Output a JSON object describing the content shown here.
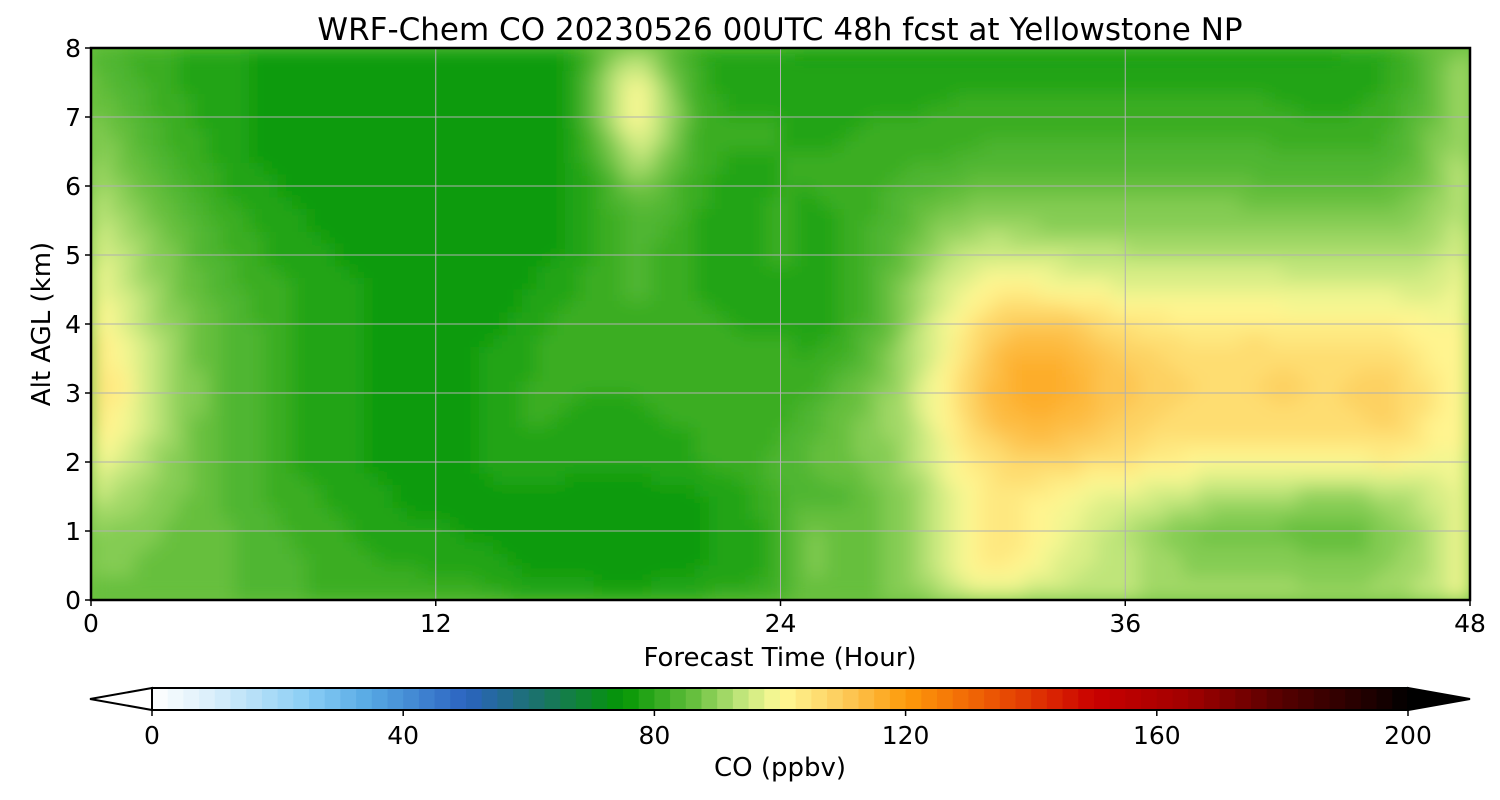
{
  "chart_data": {
    "type": "heatmap",
    "title": "WRF-Chem CO  20230526 00UTC 48h fcst at Yellowstone NP",
    "xlabel": "Forecast Time (Hour)",
    "ylabel": "Alt AGL (km)",
    "xlim": [
      0,
      48
    ],
    "ylim": [
      0,
      8
    ],
    "x_ticks": [
      0,
      12,
      24,
      36,
      48
    ],
    "y_ticks": [
      0,
      1,
      2,
      3,
      4,
      5,
      6,
      7,
      8
    ],
    "grid": true,
    "x": [
      0,
      1,
      2,
      3,
      4,
      5,
      6,
      7,
      8,
      9,
      10,
      11,
      12,
      13,
      14,
      15,
      16,
      17,
      18,
      19,
      20,
      21,
      22,
      23,
      24,
      25,
      26,
      27,
      28,
      29,
      30,
      31,
      32,
      33,
      34,
      35,
      36,
      37,
      38,
      39,
      40,
      41,
      42,
      43,
      44,
      45,
      46,
      47,
      48
    ],
    "y": [
      0,
      0.5,
      1,
      1.5,
      2,
      2.5,
      3,
      3.5,
      4,
      4.5,
      5,
      5.5,
      6,
      6.5,
      7,
      7.5,
      8
    ],
    "z_note": "rows indexed by altitude (y), columns by forecast hour (x)",
    "z": [
      [
        86,
        87,
        86,
        86,
        85,
        85,
        84,
        83,
        82,
        82,
        82,
        82,
        82,
        82,
        81,
        80,
        79,
        79,
        78,
        78,
        79,
        80,
        81,
        81,
        82,
        86,
        87,
        87,
        88,
        90,
        93,
        94,
        94,
        93,
        93,
        93,
        93,
        92,
        92,
        92,
        92,
        91,
        91,
        91,
        91,
        92,
        93,
        95,
        100
      ],
      [
        88,
        88,
        87,
        87,
        86,
        85,
        84,
        83,
        82,
        81,
        80,
        80,
        79,
        79,
        78,
        77,
        77,
        77,
        76,
        76,
        77,
        77,
        78,
        79,
        81,
        88,
        87,
        87,
        88,
        92,
        98,
        103,
        103,
        100,
        96,
        95,
        94,
        92,
        90,
        88,
        88,
        89,
        89,
        88,
        88,
        90,
        91,
        95,
        100
      ],
      [
        90,
        89,
        88,
        87,
        86,
        85,
        84,
        82,
        81,
        80,
        79,
        78,
        78,
        77,
        77,
        77,
        76,
        76,
        76,
        76,
        77,
        77,
        78,
        79,
        81,
        88,
        87,
        87,
        88,
        92,
        98,
        104,
        104,
        101,
        98,
        95,
        93,
        90,
        88,
        87,
        87,
        87,
        86,
        85,
        85,
        88,
        90,
        95,
        100
      ],
      [
        95,
        92,
        90,
        88,
        86,
        84,
        82,
        81,
        80,
        79,
        78,
        77,
        76,
        77,
        77,
        77,
        77,
        76,
        76,
        76,
        77,
        77,
        78,
        80,
        83,
        84,
        84,
        86,
        88,
        92,
        98,
        103,
        104,
        102,
        100,
        98,
        97,
        96,
        95,
        93,
        92,
        92,
        91,
        90,
        90,
        91,
        93,
        96,
        100
      ],
      [
        100,
        96,
        92,
        89,
        86,
        84,
        82,
        80,
        79,
        78,
        77,
        76,
        76,
        77,
        78,
        79,
        79,
        78,
        78,
        78,
        79,
        80,
        81,
        82,
        83,
        85,
        87,
        88,
        90,
        94,
        100,
        104,
        107,
        108,
        107,
        106,
        105,
        103,
        102,
        101,
        101,
        101,
        101,
        101,
        101,
        102,
        101,
        99,
        100
      ],
      [
        104,
        100,
        94,
        90,
        86,
        84,
        82,
        80,
        79,
        78,
        77,
        76,
        76,
        77,
        78,
        80,
        80,
        79,
        79,
        79,
        80,
        80,
        81,
        81,
        82,
        84,
        87,
        88,
        91,
        96,
        103,
        109,
        113,
        114,
        113,
        111,
        109,
        107,
        106,
        106,
        106,
        106,
        106,
        106,
        107,
        108,
        106,
        101,
        100
      ],
      [
        106,
        102,
        96,
        91,
        87,
        84,
        82,
        80,
        79,
        78,
        77,
        76,
        76,
        77,
        78,
        80,
        81,
        80,
        80,
        80,
        81,
        82,
        82,
        82,
        82,
        82,
        85,
        87,
        91,
        97,
        104,
        112,
        116,
        118,
        116,
        113,
        111,
        109,
        108,
        107,
        107,
        108,
        108,
        107,
        108,
        109,
        107,
        102,
        100
      ],
      [
        105,
        101,
        95,
        90,
        86,
        84,
        82,
        80,
        79,
        78,
        77,
        76,
        76,
        77,
        78,
        79,
        81,
        81,
        81,
        81,
        82,
        82,
        82,
        81,
        81,
        80,
        82,
        85,
        89,
        95,
        102,
        110,
        115,
        116,
        115,
        112,
        110,
        108,
        107,
        106,
        107,
        107,
        107,
        106,
        107,
        107,
        105,
        101,
        100
      ],
      [
        103,
        98,
        93,
        89,
        86,
        84,
        82,
        80,
        79,
        78,
        77,
        76,
        75,
        76,
        77,
        78,
        80,
        81,
        82,
        82,
        82,
        81,
        80,
        79,
        80,
        78,
        80,
        83,
        88,
        94,
        100,
        106,
        110,
        111,
        110,
        107,
        105,
        104,
        103,
        103,
        103,
        103,
        102,
        102,
        102,
        102,
        101,
        100,
        100
      ],
      [
        100,
        96,
        91,
        88,
        85,
        83,
        81,
        80,
        79,
        78,
        77,
        76,
        75,
        76,
        76,
        77,
        79,
        80,
        82,
        83,
        82,
        80,
        79,
        78,
        80,
        78,
        80,
        83,
        87,
        92,
        97,
        101,
        102,
        101,
        100,
        99,
        98,
        98,
        98,
        98,
        98,
        98,
        97,
        97,
        97,
        97,
        96,
        97,
        100
      ],
      [
        98,
        94,
        90,
        87,
        84,
        82,
        80,
        79,
        78,
        77,
        77,
        76,
        75,
        75,
        76,
        76,
        77,
        79,
        81,
        83,
        82,
        80,
        78,
        78,
        81,
        78,
        80,
        82,
        85,
        89,
        93,
        95,
        95,
        95,
        94,
        94,
        93,
        93,
        93,
        93,
        93,
        93,
        92,
        92,
        92,
        92,
        92,
        94,
        97
      ],
      [
        95,
        92,
        88,
        86,
        83,
        81,
        79,
        78,
        77,
        77,
        76,
        76,
        75,
        75,
        75,
        76,
        77,
        78,
        81,
        84,
        83,
        80,
        78,
        78,
        81,
        79,
        80,
        82,
        84,
        87,
        89,
        90,
        90,
        89,
        89,
        89,
        89,
        89,
        89,
        89,
        89,
        89,
        89,
        88,
        88,
        88,
        89,
        92,
        95
      ],
      [
        92,
        89,
        86,
        84,
        81,
        79,
        78,
        77,
        77,
        76,
        76,
        76,
        76,
        75,
        75,
        75,
        76,
        78,
        82,
        88,
        85,
        81,
        79,
        79,
        80,
        80,
        81,
        82,
        83,
        84,
        85,
        86,
        86,
        86,
        86,
        86,
        86,
        86,
        86,
        86,
        86,
        85,
        85,
        85,
        85,
        85,
        87,
        90,
        94
      ],
      [
        90,
        87,
        84,
        82,
        80,
        78,
        77,
        77,
        76,
        76,
        76,
        76,
        76,
        75,
        75,
        75,
        76,
        79,
        86,
        96,
        89,
        82,
        80,
        80,
        80,
        80,
        80,
        81,
        81,
        82,
        82,
        83,
        83,
        83,
        83,
        83,
        83,
        83,
        83,
        83,
        83,
        83,
        82,
        82,
        82,
        83,
        85,
        89,
        93
      ],
      [
        88,
        86,
        83,
        81,
        79,
        78,
        77,
        76,
        76,
        76,
        76,
        76,
        76,
        75,
        75,
        75,
        76,
        80,
        92,
        102,
        93,
        83,
        80,
        80,
        80,
        79,
        79,
        80,
        80,
        80,
        81,
        81,
        81,
        81,
        81,
        81,
        81,
        81,
        81,
        81,
        81,
        81,
        80,
        80,
        80,
        81,
        84,
        88,
        93
      ],
      [
        86,
        84,
        82,
        80,
        79,
        78,
        77,
        76,
        76,
        76,
        76,
        76,
        76,
        75,
        75,
        75,
        76,
        80,
        92,
        100,
        90,
        82,
        79,
        79,
        79,
        78,
        78,
        78,
        78,
        79,
        79,
        79,
        79,
        79,
        79,
        79,
        79,
        79,
        79,
        79,
        79,
        79,
        79,
        78,
        79,
        80,
        83,
        87,
        92
      ],
      [
        84,
        82,
        81,
        80,
        79,
        78,
        77,
        76,
        76,
        76,
        76,
        76,
        76,
        75,
        75,
        75,
        76,
        79,
        86,
        92,
        85,
        80,
        78,
        78,
        78,
        77,
        77,
        77,
        77,
        77,
        77,
        77,
        77,
        77,
        77,
        77,
        77,
        77,
        77,
        77,
        77,
        77,
        77,
        77,
        78,
        79,
        82,
        86,
        91
      ]
    ],
    "colorbar": {
      "label": "CO  (ppbv)",
      "min": 0,
      "max": 200,
      "ticks": [
        0,
        40,
        80,
        120,
        160,
        200
      ],
      "extend": "both",
      "levels_step": 2.5,
      "colormap_stops": [
        [
          0,
          "#ffffff"
        ],
        [
          10,
          "#d8eefa"
        ],
        [
          25,
          "#88cdf5"
        ],
        [
          35,
          "#55a7e3"
        ],
        [
          50,
          "#2b63c0"
        ],
        [
          62,
          "#1a7366"
        ],
        [
          75,
          "#049604"
        ],
        [
          86,
          "#63be3c"
        ],
        [
          94,
          "#c2e67c"
        ],
        [
          100,
          "#fffa96"
        ],
        [
          110,
          "#fdcb5b"
        ],
        [
          120,
          "#fd9b0b"
        ],
        [
          130,
          "#f16905"
        ],
        [
          142,
          "#dd2c02"
        ],
        [
          150,
          "#c90000"
        ],
        [
          165,
          "#a10000"
        ],
        [
          180,
          "#550000"
        ],
        [
          195,
          "#1a0000"
        ],
        [
          200,
          "#000000"
        ]
      ],
      "under_color": "#ffffff",
      "over_color": "#000000"
    }
  }
}
